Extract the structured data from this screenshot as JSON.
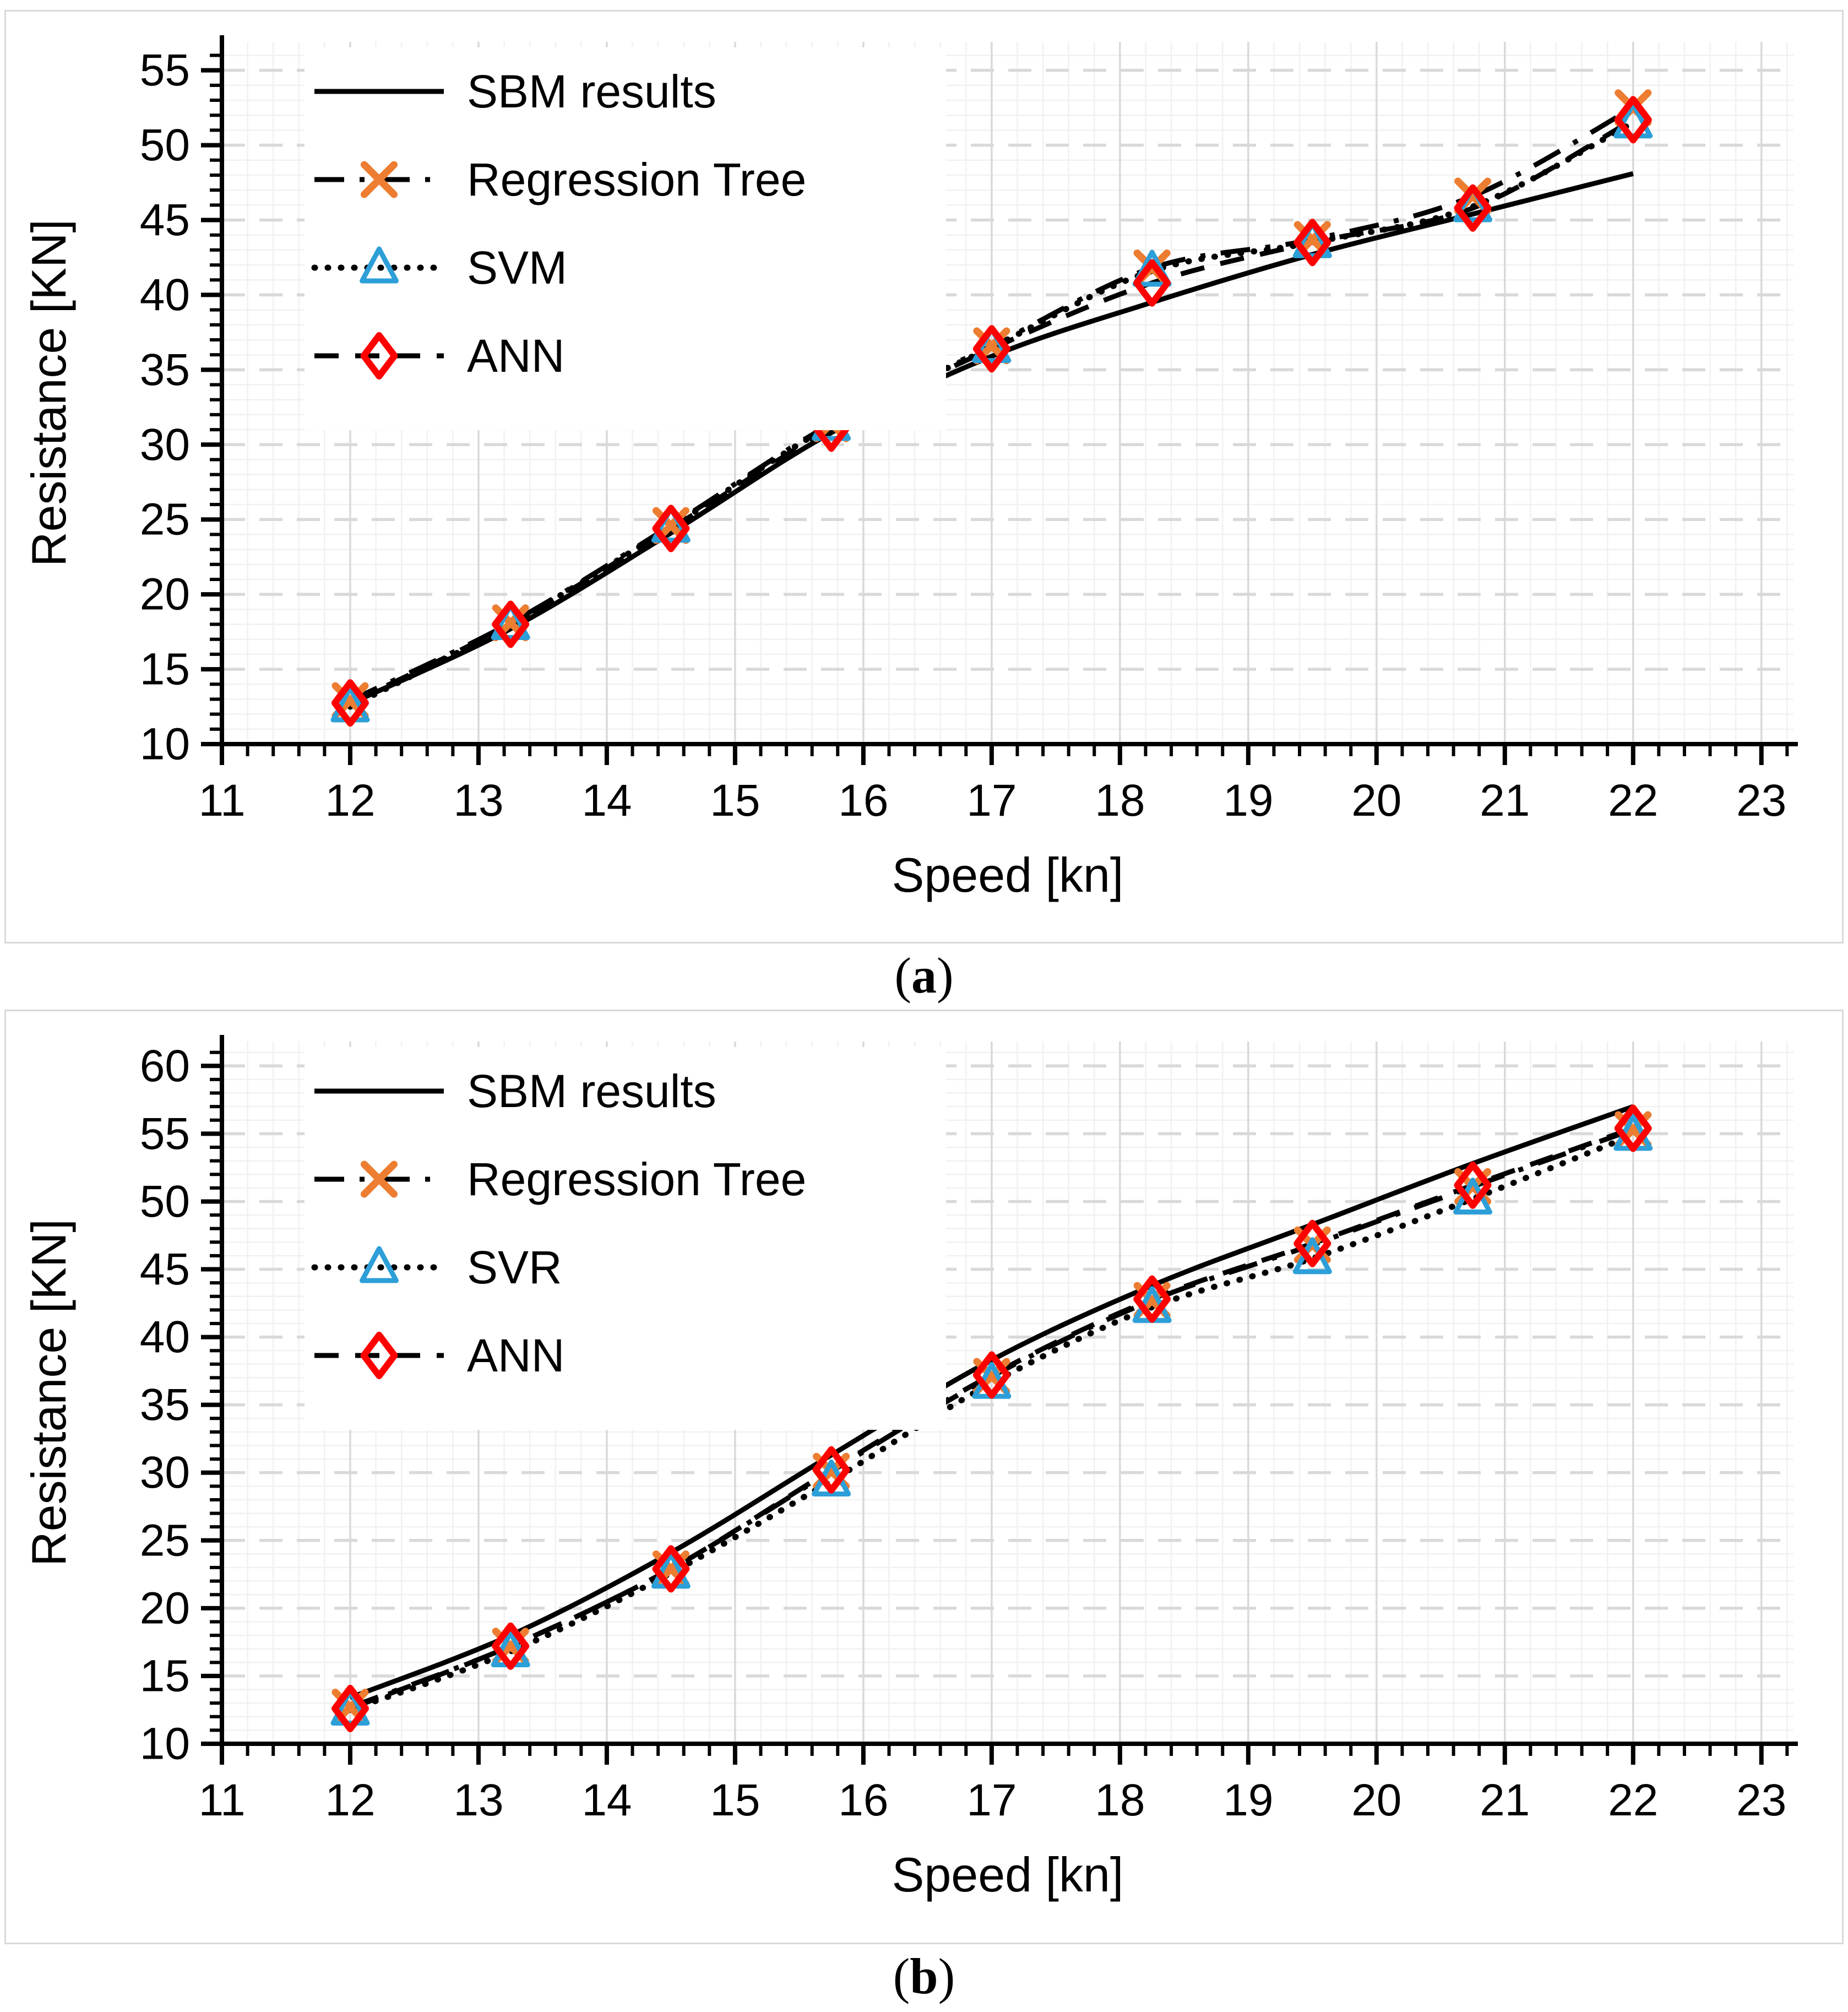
{
  "figure": {
    "captions": {
      "a_pre": "(",
      "a_letter": "a",
      "a_post": ")",
      "b_pre": "(",
      "b_letter": "b",
      "b_post": ")"
    }
  },
  "colors": {
    "line_black": "#000000",
    "marker_orange": "#ED7D31",
    "marker_blue": "#2D9FD8",
    "marker_red": "#FF0000",
    "grid_major": "#d9d9d9",
    "grid_minor": "#f1f1f1",
    "panel_border": "#d9d9d9"
  },
  "chart_data": [
    {
      "id": "a",
      "type": "line",
      "title": "",
      "xlabel": "Speed [kn]",
      "ylabel": "Resistance [KN]",
      "legend_position": "top-left",
      "x_axis": {
        "min": 11,
        "max": 23.25,
        "major_step": 1,
        "minor_step": 0.2,
        "tick_labels": [
          11,
          12,
          13,
          14,
          15,
          16,
          17,
          18,
          19,
          20,
          21,
          22,
          23
        ]
      },
      "y_axis": {
        "min": 10,
        "max": 56.9,
        "major_step": 5,
        "minor_step": 1,
        "tick_labels": [
          10,
          15,
          20,
          25,
          30,
          35,
          40,
          45,
          50,
          55
        ]
      },
      "grid": {
        "major": true,
        "minor": true
      },
      "x": [
        12,
        13.25,
        14.5,
        15.75,
        17,
        18.25,
        19.5,
        20.75,
        22
      ],
      "series": [
        {
          "name": "SBM results",
          "line": "solid",
          "line_color": "#000000",
          "marker": "none",
          "marker_color": null,
          "values": [
            12.7,
            17.7,
            24.1,
            30.8,
            35.9,
            39.5,
            42.7,
            45.4,
            48.1
          ]
        },
        {
          "name": "Regression Tree",
          "line": "dash-dot",
          "line_color": "#000000",
          "marker": "x",
          "marker_color": "#ED7D31",
          "values": [
            12.9,
            18.1,
            24.6,
            31.4,
            36.6,
            41.8,
            43.7,
            46.6,
            52.5
          ]
        },
        {
          "name": "SVM",
          "line": "dotted",
          "line_color": "#000000",
          "marker": "triangle-open",
          "marker_color": "#2D9FD8",
          "values": [
            12.5,
            18.0,
            24.5,
            31.3,
            36.5,
            41.6,
            43.5,
            45.9,
            51.5
          ]
        },
        {
          "name": "ANN",
          "line": "dashed",
          "line_color": "#000000",
          "marker": "diamond-open",
          "marker_color": "#FF0000",
          "values": [
            12.75,
            18.0,
            24.4,
            31.1,
            36.4,
            40.8,
            43.5,
            45.8,
            51.7
          ]
        }
      ]
    },
    {
      "id": "b",
      "type": "line",
      "title": "",
      "xlabel": "Speed [kn]",
      "ylabel": "Resistance [KN]",
      "legend_position": "top-left",
      "x_axis": {
        "min": 11,
        "max": 23.25,
        "major_step": 1,
        "minor_step": 0.2,
        "tick_labels": [
          11,
          12,
          13,
          14,
          15,
          16,
          17,
          18,
          19,
          20,
          21,
          22,
          23
        ]
      },
      "y_axis": {
        "min": 10,
        "max": 61.8,
        "major_step": 5,
        "minor_step": 1,
        "tick_labels": [
          10,
          15,
          20,
          25,
          30,
          35,
          40,
          45,
          50,
          55,
          60
        ]
      },
      "grid": {
        "major": true,
        "minor": true
      },
      "x": [
        12,
        13.25,
        14.5,
        15.75,
        17,
        18.25,
        19.5,
        20.75,
        22
      ],
      "series": [
        {
          "name": "SBM results",
          "line": "solid",
          "line_color": "#000000",
          "marker": "none",
          "marker_color": null,
          "values": [
            13.4,
            18.0,
            24.1,
            31.3,
            38.3,
            43.8,
            48.3,
            52.8,
            57.0
          ]
        },
        {
          "name": "Regression Tree",
          "line": "dash-dot",
          "line_color": "#000000",
          "marker": "x",
          "marker_color": "#ED7D31",
          "values": [
            12.7,
            17.2,
            22.9,
            30.1,
            37.1,
            42.7,
            46.8,
            51.1,
            55.3
          ]
        },
        {
          "name": "SVR",
          "line": "dotted",
          "line_color": "#000000",
          "marker": "triangle-open",
          "marker_color": "#2D9FD8",
          "values": [
            12.5,
            16.8,
            22.6,
            29.4,
            36.6,
            42.2,
            45.8,
            50.2,
            54.9
          ]
        },
        {
          "name": "ANN",
          "line": "dashed",
          "line_color": "#000000",
          "marker": "diamond-open",
          "marker_color": "#FF0000",
          "values": [
            12.6,
            17.2,
            22.9,
            30.2,
            37.2,
            42.8,
            46.9,
            51.2,
            55.4
          ]
        }
      ]
    }
  ]
}
